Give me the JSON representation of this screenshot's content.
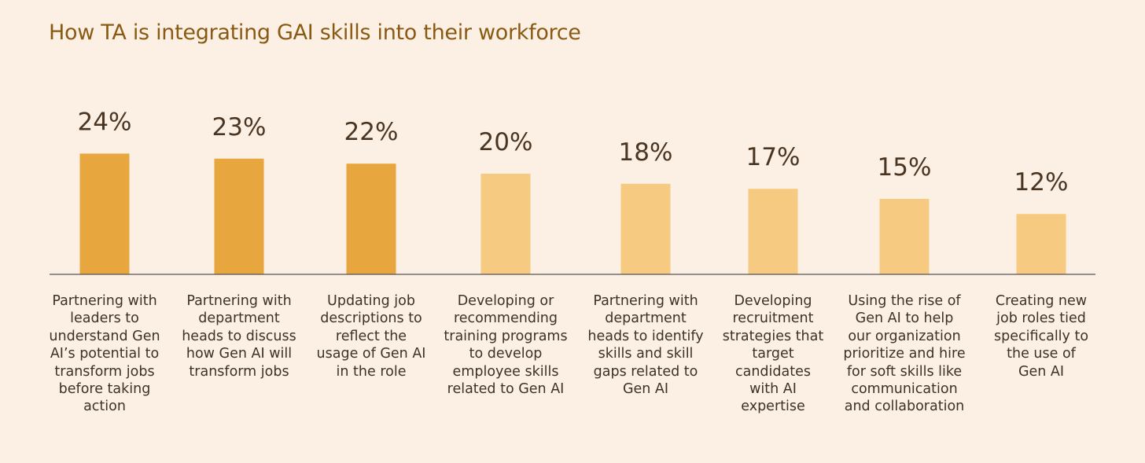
{
  "title": "How TA is integrating GAI skills into their workforce",
  "colors": {
    "background": "#fbf0e3",
    "title": "#8a5a12",
    "value_text": "#4a3522",
    "label_text": "#3d3128",
    "bar_dark": "#e7a63e",
    "bar_light": "#f6ca80",
    "baseline": "#555555"
  },
  "chart_data": {
    "type": "bar",
    "title": "How TA is integrating GAI skills into their workforce",
    "xlabel": "",
    "ylabel": "",
    "ylim": [
      0,
      26
    ],
    "grid": false,
    "categories": [
      "Partnering with\nleaders to\nunderstand Gen\nAI’s potential to\ntransform jobs\nbefore taking\naction",
      "Partnering with\ndepartment\nheads to discuss\nhow Gen AI will\ntransform jobs",
      "Updating job\ndescriptions to\nreflect the\nusage of Gen AI\nin the role",
      "Developing or\nrecommending\ntraining programs\nto develop\nemployee skills\nrelated to Gen AI",
      "Partnering with\ndepartment\nheads to identify\nskills and skill\ngaps related to\nGen AI",
      "Developing\nrecruitment\nstrategies that\ntarget\ncandidates\nwith AI\nexpertise",
      "Using the rise of\nGen AI to help\nour organization\nprioritize and hire\nfor soft skills like\ncommunication\nand collaboration",
      "Creating new\njob roles tied\nspecifically to\nthe use of\nGen AI"
    ],
    "values": [
      24,
      23,
      22,
      20,
      18,
      17,
      15,
      12
    ],
    "value_labels": [
      "24%",
      "23%",
      "22%",
      "20%",
      "18%",
      "17%",
      "15%",
      "12%"
    ],
    "highlight": [
      true,
      true,
      true,
      false,
      false,
      false,
      false,
      false
    ]
  }
}
